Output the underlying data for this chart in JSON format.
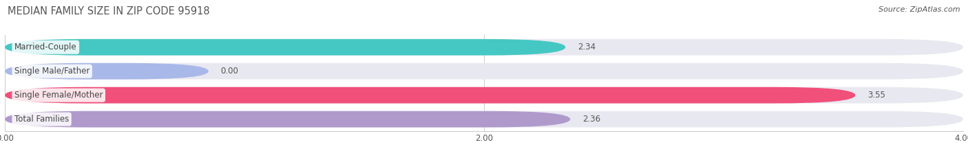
{
  "title": "MEDIAN FAMILY SIZE IN ZIP CODE 95918",
  "source": "Source: ZipAtlas.com",
  "categories": [
    "Married-Couple",
    "Single Male/Father",
    "Single Female/Mother",
    "Total Families"
  ],
  "values": [
    2.34,
    0.0,
    3.55,
    2.36
  ],
  "bar_colors": [
    "#45C8C4",
    "#A8B8E8",
    "#F0507A",
    "#B09ACC"
  ],
  "bar_bg_color": "#E8E8F0",
  "xlim": [
    0,
    4.0
  ],
  "xticks": [
    0.0,
    2.0,
    4.0
  ],
  "xtick_labels": [
    "0.00",
    "2.00",
    "4.00"
  ],
  "label_fontsize": 8.5,
  "value_fontsize": 8.5,
  "title_fontsize": 10.5,
  "source_fontsize": 8,
  "bar_height": 0.68,
  "figsize": [
    14.06,
    2.33
  ],
  "dpi": 100
}
